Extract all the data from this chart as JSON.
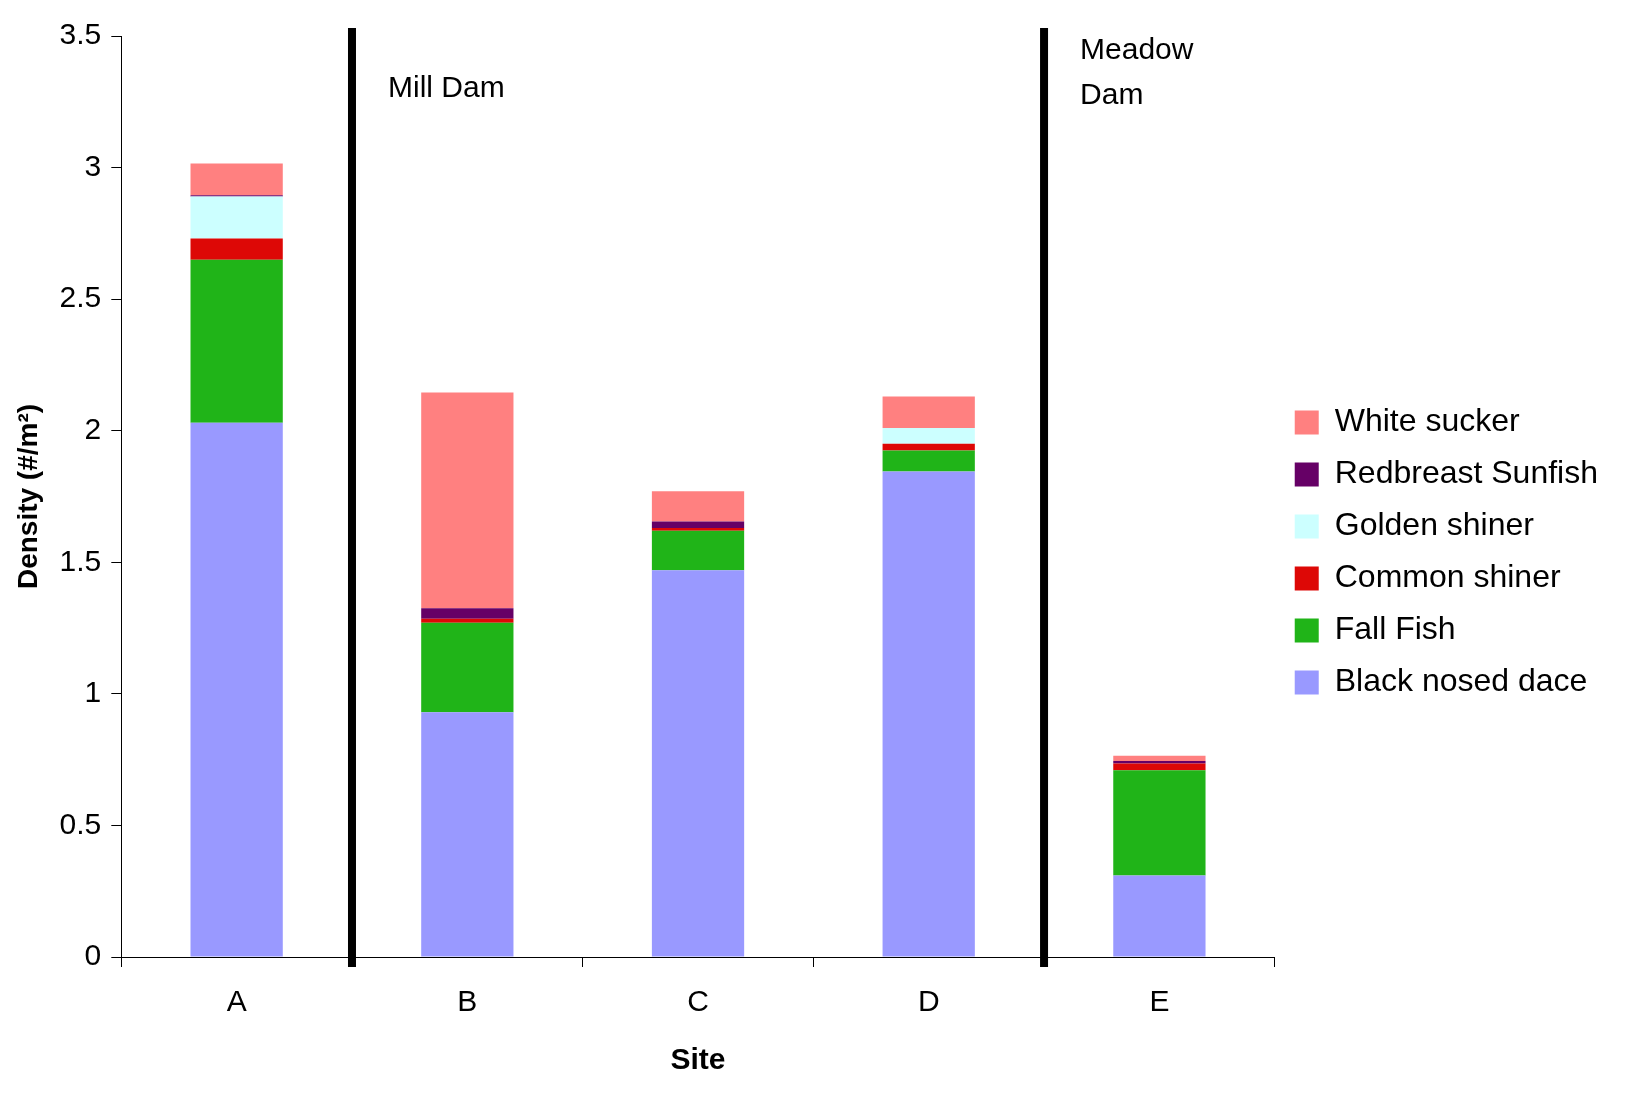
{
  "chart_data": {
    "type": "bar",
    "stacked": true,
    "xlabel": "Site",
    "ylabel": "Density (#/m²)",
    "categories": [
      "A",
      "B",
      "C",
      "D",
      "E"
    ],
    "series": [
      {
        "name": "Black nosed dace",
        "color": "#9999ff",
        "values": [
          2.03,
          0.93,
          1.47,
          1.845,
          0.31
        ]
      },
      {
        "name": "Fall Fish",
        "color": "#20b418",
        "values": [
          0.62,
          0.34,
          0.15,
          0.08,
          0.4
        ]
      },
      {
        "name": "Common shiner",
        "color": "#dd0806",
        "values": [
          0.08,
          0.015,
          0.01,
          0.025,
          0.025
        ]
      },
      {
        "name": "Golden shiner",
        "color": "#ccffff",
        "values": [
          0.16,
          0,
          0,
          0.06,
          0
        ]
      },
      {
        "name": "Redbreast Sunfish",
        "color": "#660066",
        "values": [
          0.005,
          0.04,
          0.025,
          0,
          0.01
        ]
      },
      {
        "name": "White sucker",
        "color": "#ff8080",
        "values": [
          0.12,
          0.82,
          0.115,
          0.12,
          0.02
        ]
      }
    ],
    "ylim": [
      0,
      3.5
    ],
    "yticks": [
      0,
      0.5,
      1,
      1.5,
      2,
      2.5,
      3,
      3.5
    ],
    "grid": false,
    "legend": "right",
    "annotations": [
      "Mill Dam",
      "Meadow\nDam"
    ]
  }
}
